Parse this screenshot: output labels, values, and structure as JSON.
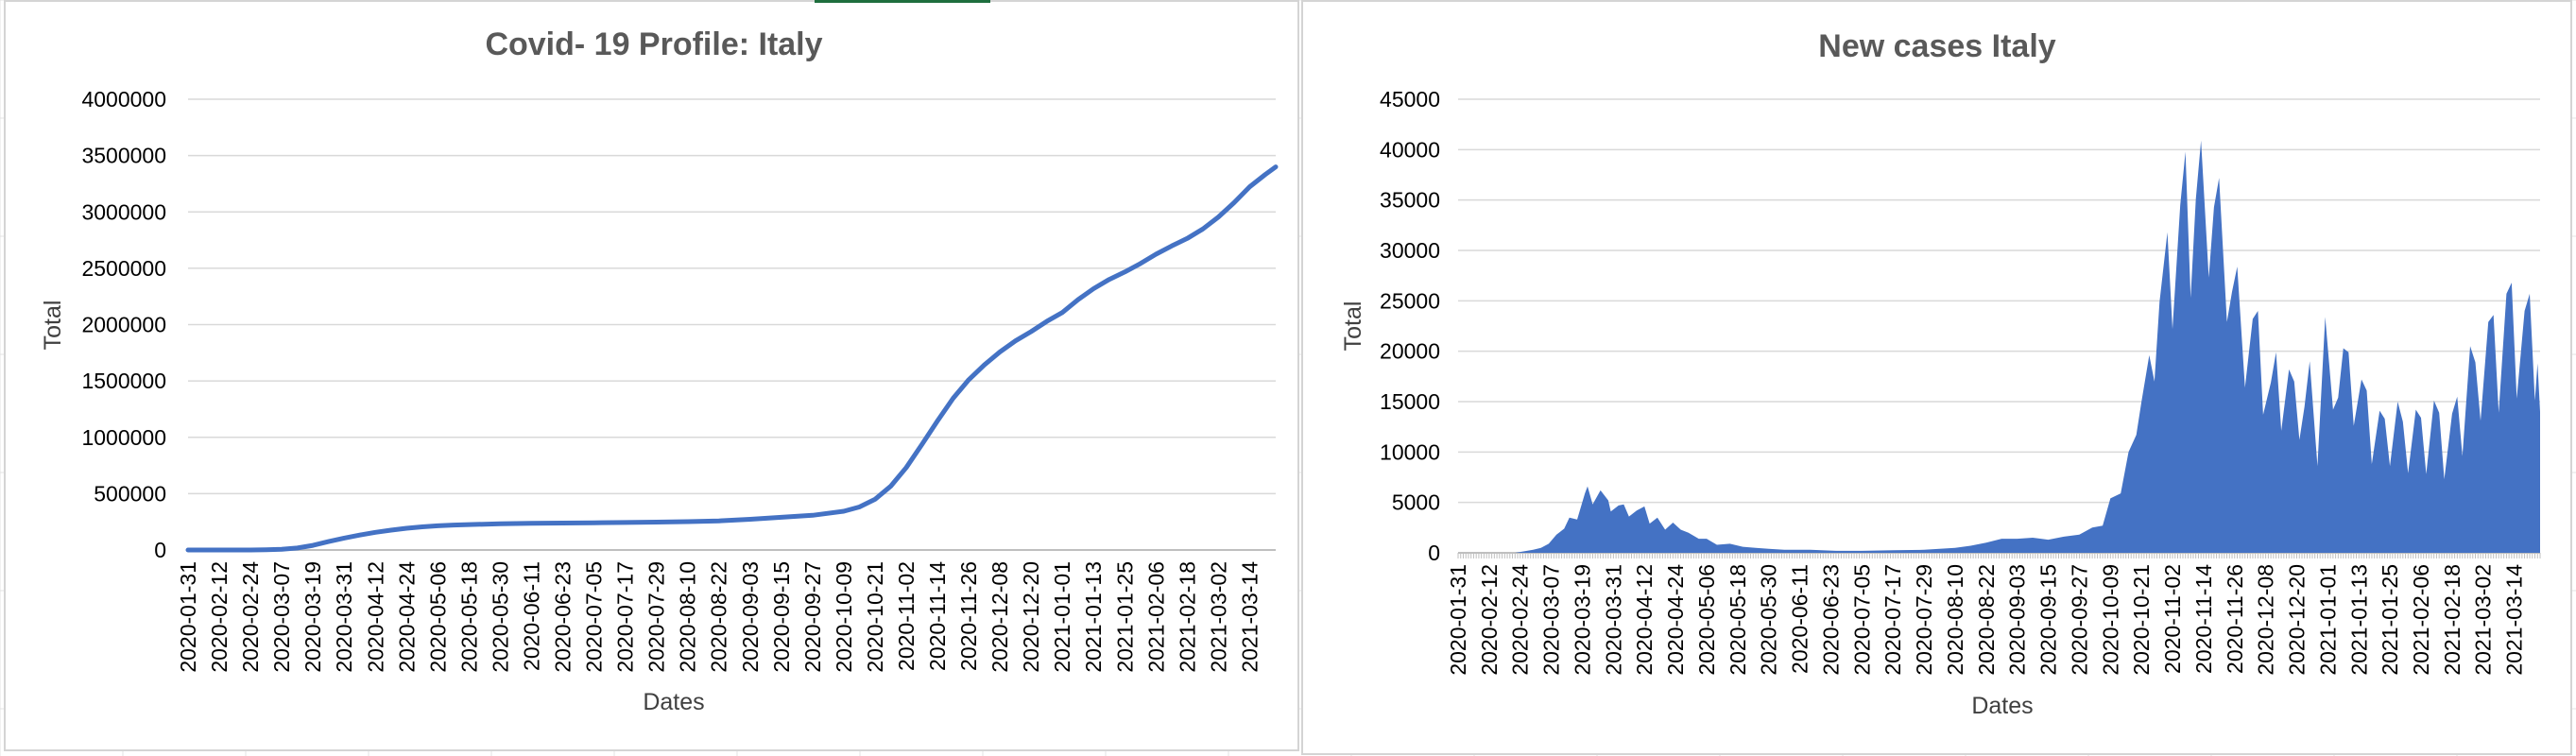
{
  "colors": {
    "series": "#4472C4",
    "gridline": "#d9d9d9",
    "axis": "#bfbfbf",
    "title": "#595959",
    "sheet_grid": "#e3e3e3"
  },
  "chart_data": [
    {
      "type": "line",
      "title": "Covid- 19 Profile: Italy",
      "xlabel": "Dates",
      "ylabel": "Total",
      "x_range": [
        "2020-01-31",
        "2021-03-24"
      ],
      "ylim": [
        0,
        4000000
      ],
      "y_ticks": [
        "4000000",
        "3500000",
        "3000000",
        "2500000",
        "2000000",
        "1500000",
        "1000000",
        "500000",
        "0"
      ],
      "x_tick_labels": [
        "2020-01-31",
        "2020-02-12",
        "2020-02-24",
        "2020-03-07",
        "2020-03-19",
        "2020-03-31",
        "2020-04-12",
        "2020-04-24",
        "2020-05-06",
        "2020-05-18",
        "2020-05-30",
        "2020-06-11",
        "2020-06-23",
        "2020-07-05",
        "2020-07-17",
        "2020-07-29",
        "2020-08-10",
        "2020-08-22",
        "2020-09-03",
        "2020-09-15",
        "2020-09-27",
        "2020-10-09",
        "2020-10-21",
        "2020-11-02",
        "2020-11-14",
        "2020-11-26",
        "2020-12-08",
        "2020-12-20",
        "2021-01-01",
        "2021-01-13",
        "2021-01-25",
        "2021-02-06",
        "2021-02-18",
        "2021-03-02",
        "2021-03-14"
      ],
      "grid": true,
      "legend": "none",
      "series": [
        {
          "points": [
            [
              "2020-01-31",
              2
            ],
            [
              "2020-02-24",
              230
            ],
            [
              "2020-03-01",
              1700
            ],
            [
              "2020-03-07",
              5900
            ],
            [
              "2020-03-13",
              17700
            ],
            [
              "2020-03-19",
              41000
            ],
            [
              "2020-03-25",
              74400
            ],
            [
              "2020-03-31",
              105800
            ],
            [
              "2020-04-06",
              132500
            ],
            [
              "2020-04-12",
              156400
            ],
            [
              "2020-04-18",
              175900
            ],
            [
              "2020-04-24",
              192900
            ],
            [
              "2020-04-30",
              205500
            ],
            [
              "2020-05-06",
              214500
            ],
            [
              "2020-05-12",
              221200
            ],
            [
              "2020-05-18",
              225900
            ],
            [
              "2020-05-30",
              232700
            ],
            [
              "2020-06-11",
              236300
            ],
            [
              "2020-06-23",
              239000
            ],
            [
              "2020-07-05",
              241600
            ],
            [
              "2020-07-17",
              244200
            ],
            [
              "2020-07-29",
              247200
            ],
            [
              "2020-08-10",
              251200
            ],
            [
              "2020-08-22",
              258100
            ],
            [
              "2020-09-03",
              272900
            ],
            [
              "2020-09-15",
              289800
            ],
            [
              "2020-09-27",
              308100
            ],
            [
              "2020-10-09",
              343800
            ],
            [
              "2020-10-15",
              381600
            ],
            [
              "2020-10-21",
              449600
            ],
            [
              "2020-10-27",
              564800
            ],
            [
              "2020-11-02",
              731600
            ],
            [
              "2020-11-08",
              935100
            ],
            [
              "2020-11-14",
              1144500
            ],
            [
              "2020-11-20",
              1345800
            ],
            [
              "2020-11-26",
              1509900
            ],
            [
              "2020-12-02",
              1641600
            ],
            [
              "2020-12-08",
              1757400
            ],
            [
              "2020-12-14",
              1855700
            ],
            [
              "2020-12-20",
              1938100
            ],
            [
              "2020-12-26",
              2028400
            ],
            [
              "2021-01-01",
              2107200
            ],
            [
              "2021-01-07",
              2220400
            ],
            [
              "2021-01-13",
              2319000
            ],
            [
              "2021-01-19",
              2400600
            ],
            [
              "2021-01-25",
              2466800
            ],
            [
              "2021-01-31",
              2541800
            ],
            [
              "2021-02-06",
              2625100
            ],
            [
              "2021-02-12",
              2697300
            ],
            [
              "2021-02-18",
              2765000
            ],
            [
              "2021-02-24",
              2848600
            ],
            [
              "2021-03-02",
              2955400
            ],
            [
              "2021-03-08",
              3081400
            ],
            [
              "2021-03-14",
              3223100
            ],
            [
              "2021-03-20",
              3332400
            ],
            [
              "2021-03-24",
              3400000
            ]
          ]
        }
      ]
    },
    {
      "type": "area",
      "title": "New cases Italy",
      "xlabel": "Dates",
      "ylabel": "Total",
      "x_range": [
        "2020-01-31",
        "2021-03-24"
      ],
      "ylim": [
        0,
        45000
      ],
      "y_ticks": [
        "45000",
        "40000",
        "35000",
        "30000",
        "25000",
        "20000",
        "15000",
        "10000",
        "5000",
        "0"
      ],
      "x_tick_labels": [
        "2020-01-31",
        "2020-02-12",
        "2020-02-24",
        "2020-03-07",
        "2020-03-19",
        "2020-03-31",
        "2020-04-12",
        "2020-04-24",
        "2020-05-06",
        "2020-05-18",
        "2020-05-30",
        "2020-06-11",
        "2020-06-23",
        "2020-07-05",
        "2020-07-17",
        "2020-07-29",
        "2020-08-10",
        "2020-08-22",
        "2020-09-03",
        "2020-09-15",
        "2020-09-27",
        "2020-10-09",
        "2020-10-21",
        "2020-11-02",
        "2020-11-14",
        "2020-11-26",
        "2020-12-08",
        "2020-12-20",
        "2021-01-01",
        "2021-01-13",
        "2021-01-25",
        "2021-02-06",
        "2021-02-18",
        "2021-03-02",
        "2021-03-14"
      ],
      "grid": true,
      "legend": "none",
      "series": [
        {
          "points": [
            [
              "2020-01-31",
              0
            ],
            [
              "2020-02-22",
              0
            ],
            [
              "2020-02-29",
              300
            ],
            [
              "2020-03-03",
              500
            ],
            [
              "2020-03-06",
              900
            ],
            [
              "2020-03-09",
              1800
            ],
            [
              "2020-03-12",
              2400
            ],
            [
              "2020-03-14",
              3500
            ],
            [
              "2020-03-17",
              3300
            ],
            [
              "2020-03-20",
              5900
            ],
            [
              "2020-03-21",
              6600
            ],
            [
              "2020-03-23",
              4800
            ],
            [
              "2020-03-26",
              6200
            ],
            [
              "2020-03-29",
              5200
            ],
            [
              "2020-03-30",
              4100
            ],
            [
              "2020-04-02",
              4700
            ],
            [
              "2020-04-04",
              4800
            ],
            [
              "2020-04-06",
              3600
            ],
            [
              "2020-04-09",
              4200
            ],
            [
              "2020-04-12",
              4600
            ],
            [
              "2020-04-14",
              2900
            ],
            [
              "2020-04-17",
              3500
            ],
            [
              "2020-04-20",
              2300
            ],
            [
              "2020-04-23",
              3000
            ],
            [
              "2020-04-26",
              2300
            ],
            [
              "2020-04-29",
              2000
            ],
            [
              "2020-05-03",
              1400
            ],
            [
              "2020-05-06",
              1400
            ],
            [
              "2020-05-10",
              800
            ],
            [
              "2020-05-15",
              900
            ],
            [
              "2020-05-20",
              600
            ],
            [
              "2020-05-25",
              500
            ],
            [
              "2020-05-30",
              400
            ],
            [
              "2020-06-05",
              300
            ],
            [
              "2020-06-15",
              300
            ],
            [
              "2020-06-25",
              200
            ],
            [
              "2020-07-05",
              200
            ],
            [
              "2020-07-17",
              250
            ],
            [
              "2020-07-29",
              300
            ],
            [
              "2020-08-10",
              500
            ],
            [
              "2020-08-16",
              700
            ],
            [
              "2020-08-22",
              1000
            ],
            [
              "2020-08-28",
              1400
            ],
            [
              "2020-09-03",
              1400
            ],
            [
              "2020-09-09",
              1500
            ],
            [
              "2020-09-15",
              1300
            ],
            [
              "2020-09-21",
              1600
            ],
            [
              "2020-09-27",
              1800
            ],
            [
              "2020-10-02",
              2500
            ],
            [
              "2020-10-06",
              2700
            ],
            [
              "2020-10-09",
              5400
            ],
            [
              "2020-10-13",
              5900
            ],
            [
              "2020-10-16",
              10000
            ],
            [
              "2020-10-19",
              11700
            ],
            [
              "2020-10-21",
              15000
            ],
            [
              "2020-10-24",
              19600
            ],
            [
              "2020-10-26",
              17000
            ],
            [
              "2020-10-28",
              24900
            ],
            [
              "2020-10-31",
              31800
            ],
            [
              "2020-11-02",
              22200
            ],
            [
              "2020-11-05",
              34500
            ],
            [
              "2020-11-07",
              39800
            ],
            [
              "2020-11-09",
              25300
            ],
            [
              "2020-11-11",
              35100
            ],
            [
              "2020-11-13",
              40900
            ],
            [
              "2020-11-16",
              27300
            ],
            [
              "2020-11-18",
              34300
            ],
            [
              "2020-11-20",
              37200
            ],
            [
              "2020-11-23",
              22900
            ],
            [
              "2020-11-25",
              25900
            ],
            [
              "2020-11-27",
              28400
            ],
            [
              "2020-11-30",
              16400
            ],
            [
              "2020-12-03",
              23200
            ],
            [
              "2020-12-05",
              24000
            ],
            [
              "2020-12-07",
              13700
            ],
            [
              "2020-12-10",
              16900
            ],
            [
              "2020-12-12",
              19900
            ],
            [
              "2020-12-14",
              12100
            ],
            [
              "2020-12-17",
              18200
            ],
            [
              "2020-12-19",
              17000
            ],
            [
              "2020-12-21",
              11200
            ],
            [
              "2020-12-23",
              14500
            ],
            [
              "2020-12-25",
              19000
            ],
            [
              "2020-12-28",
              8600
            ],
            [
              "2020-12-31",
              23400
            ],
            [
              "2021-01-03",
              14200
            ],
            [
              "2021-01-05",
              15400
            ],
            [
              "2021-01-07",
              20300
            ],
            [
              "2021-01-09",
              19900
            ],
            [
              "2021-01-11",
              12600
            ],
            [
              "2021-01-14",
              17200
            ],
            [
              "2021-01-16",
              16100
            ],
            [
              "2021-01-18",
              8800
            ],
            [
              "2021-01-21",
              14100
            ],
            [
              "2021-01-23",
              13300
            ],
            [
              "2021-01-25",
              8600
            ],
            [
              "2021-01-28",
              15000
            ],
            [
              "2021-01-30",
              13000
            ],
            [
              "2021-02-01",
              7900
            ],
            [
              "2021-02-04",
              14200
            ],
            [
              "2021-02-06",
              13400
            ],
            [
              "2021-02-08",
              7800
            ],
            [
              "2021-02-11",
              15100
            ],
            [
              "2021-02-13",
              13900
            ],
            [
              "2021-02-15",
              7300
            ],
            [
              "2021-02-18",
              13800
            ],
            [
              "2021-02-20",
              15500
            ],
            [
              "2021-02-22",
              9600
            ],
            [
              "2021-02-25",
              20500
            ],
            [
              "2021-02-27",
              18900
            ],
            [
              "2021-03-01",
              13100
            ],
            [
              "2021-03-04",
              22900
            ],
            [
              "2021-03-06",
              23600
            ],
            [
              "2021-03-08",
              13900
            ],
            [
              "2021-03-11",
              25700
            ],
            [
              "2021-03-13",
              26800
            ],
            [
              "2021-03-15",
              15300
            ],
            [
              "2021-03-18",
              24000
            ],
            [
              "2021-03-20",
              25700
            ],
            [
              "2021-03-22",
              15100
            ],
            [
              "2021-03-23",
              18800
            ],
            [
              "2021-03-24",
              14000
            ]
          ]
        }
      ]
    }
  ]
}
